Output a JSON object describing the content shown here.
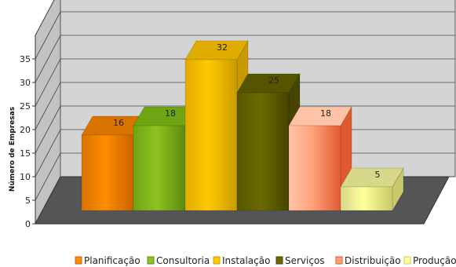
{
  "chart_data": {
    "type": "bar",
    "title": "",
    "xlabel": "",
    "ylabel": "Número de Empresas",
    "ylim": [
      0,
      40
    ],
    "yticks": [
      0,
      5,
      10,
      15,
      20,
      25,
      30,
      35
    ],
    "grid": true,
    "style": "3d",
    "legend_position": "bottom",
    "categories": [
      "Planificação",
      "Consultoria",
      "Instalação",
      "Serviços",
      "Distribuição",
      "Produção"
    ],
    "values": [
      16,
      18,
      32,
      25,
      18,
      5
    ],
    "colors": [
      "#ff8c00",
      "#8dc21f",
      "#ffc800",
      "#6b6b00",
      "#ffa27a",
      "#ffff99"
    ],
    "side_colors": [
      "#c96400",
      "#5e8a10",
      "#c99a00",
      "#454500",
      "#e05a30",
      "#c9c96a"
    ],
    "top_colors": [
      "#d87300",
      "#6fa512",
      "#e0ac00",
      "#555500",
      "#ffc4a8",
      "#d8d88a"
    ]
  }
}
